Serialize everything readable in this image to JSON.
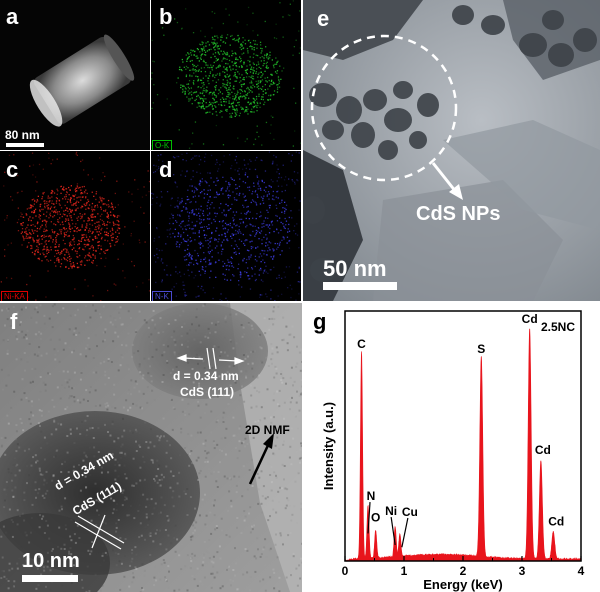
{
  "panels": {
    "a": {
      "label": "a",
      "scalebar_text": "80 nm"
    },
    "b": {
      "label": "b",
      "element_tag": "O-K",
      "tag_color": "#00c000"
    },
    "c": {
      "label": "c",
      "element_tag": "Ni-KA",
      "tag_color": "#e00000"
    },
    "d": {
      "label": "d",
      "element_tag": "N-K",
      "tag_color": "#4a4ad0"
    },
    "e": {
      "label": "e",
      "annotation": "CdS NPs",
      "scalebar_text": "50 nm"
    },
    "f": {
      "label": "f",
      "d_spacing_1": "d = 0.34 nm",
      "plane_1": "CdS (111)",
      "d_spacing_2": "d = 0.34 nm",
      "plane_2": "CdS (111)",
      "annotation": "2D NMF",
      "scalebar_text": "10 nm"
    },
    "g": {
      "label": "g"
    }
  },
  "colors": {
    "spectrum_fill": "#e8141c",
    "map_green": "#22c02a",
    "map_red": "#e0261c",
    "map_blue": "#3a3ad8"
  },
  "chart_data": {
    "type": "area",
    "title": "2.5NC",
    "xlabel": "Energy (keV)",
    "ylabel": "Intensity (a.u.)",
    "xlim": [
      0,
      4
    ],
    "x_ticks": [
      "0",
      "1",
      "2",
      "3",
      "4"
    ],
    "peaks": [
      {
        "label": "C",
        "x": 0.28,
        "y": 0.9
      },
      {
        "label": "N",
        "x": 0.39,
        "y": 0.23
      },
      {
        "label": "O",
        "x": 0.52,
        "y": 0.12
      },
      {
        "label": "Ni",
        "x": 0.85,
        "y": 0.13
      },
      {
        "label": "Cu",
        "x": 0.93,
        "y": 0.1
      },
      {
        "label": "S",
        "x": 2.31,
        "y": 0.87
      },
      {
        "label": "Cd",
        "x": 3.13,
        "y": 1.0
      },
      {
        "label": "Cd",
        "x": 3.32,
        "y": 0.43
      },
      {
        "label": "Cd",
        "x": 3.53,
        "y": 0.12
      }
    ]
  }
}
